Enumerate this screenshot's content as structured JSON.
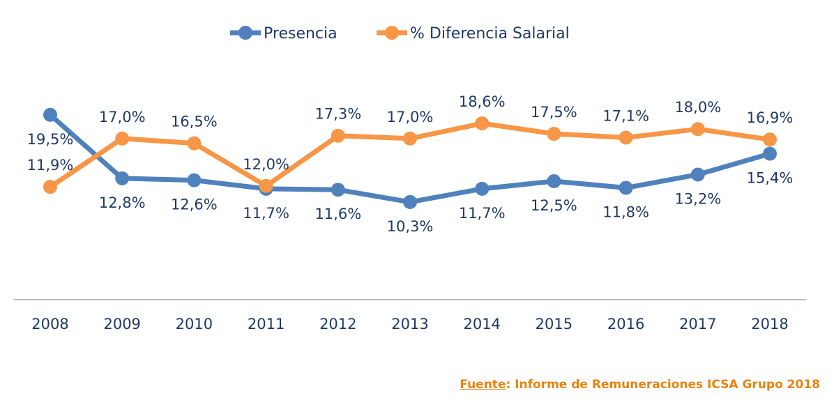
{
  "chart_data": {
    "type": "line",
    "title": "",
    "xlabel": "",
    "ylabel": "",
    "categories": [
      "2008",
      "2009",
      "2010",
      "2011",
      "2012",
      "2013",
      "2014",
      "2015",
      "2016",
      "2017",
      "2018"
    ],
    "ylim": [
      0,
      25
    ],
    "grid": false,
    "legend_position": "top",
    "series": [
      {
        "name": "Presencia",
        "color": "#4f81bd",
        "label_position": "below",
        "values": [
          19.5,
          12.8,
          12.6,
          11.7,
          11.6,
          10.3,
          11.7,
          12.5,
          11.8,
          13.2,
          15.4
        ]
      },
      {
        "name": "% Diferencia Salarial",
        "color": "#f79646",
        "label_position": "above",
        "values": [
          11.9,
          17.0,
          16.5,
          12.0,
          17.3,
          17.0,
          18.6,
          17.5,
          17.1,
          18.0,
          16.9
        ]
      }
    ],
    "value_format": "percent, one decimal, comma separator"
  },
  "footer": {
    "source_label": "Fuente",
    "source_text": ": Informe de Remuneraciones ICSA Grupo 2018"
  }
}
